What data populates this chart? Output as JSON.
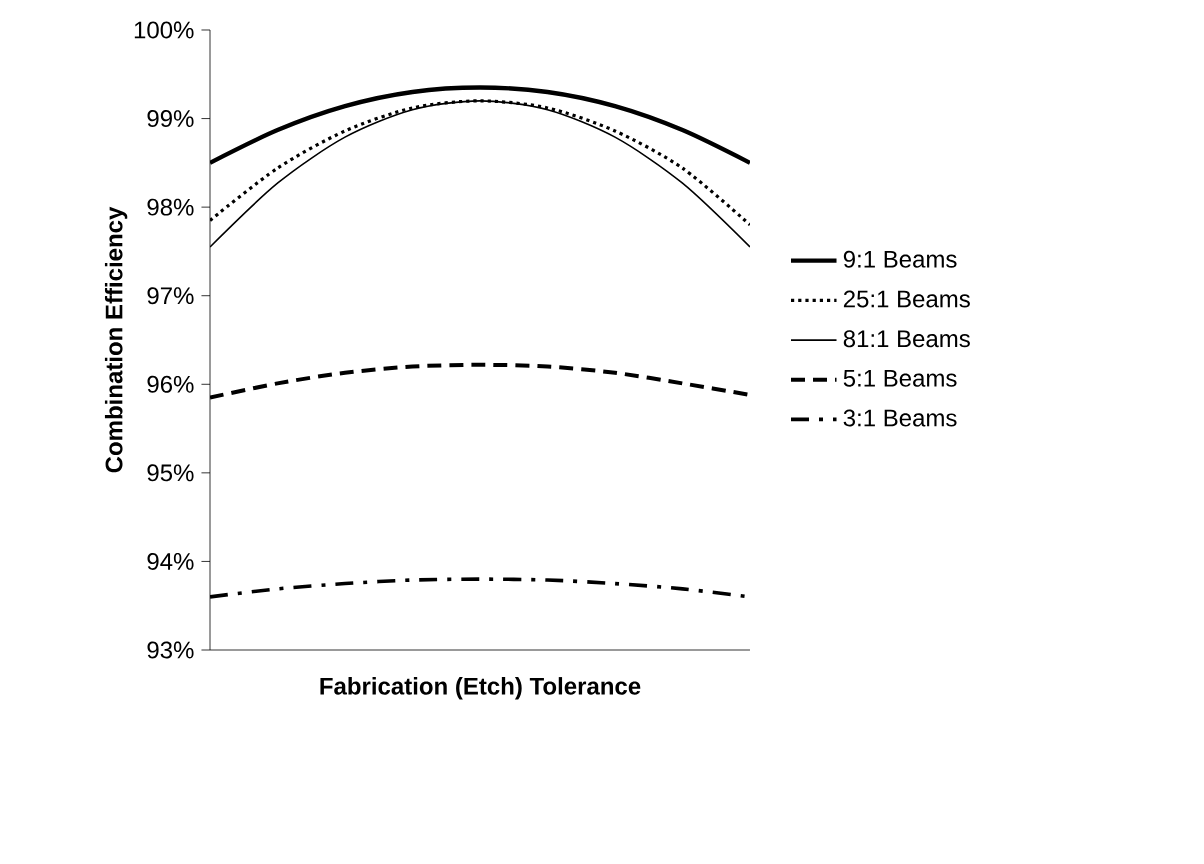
{
  "chart_data": {
    "type": "line",
    "xlabel": "Fabrication (Etch) Tolerance",
    "ylabel": "Combination Efficiency",
    "categories": [
      null,
      null,
      null,
      null,
      null,
      null,
      null,
      null,
      null
    ],
    "series": [
      {
        "name": "9:1 Beams",
        "color": "#000000",
        "line_style": "solid",
        "values": [
          98.5,
          98.87,
          99.14,
          99.3,
          99.35,
          99.3,
          99.14,
          98.87,
          98.5
        ]
      },
      {
        "name": "25:1 Beams",
        "color": "#000000",
        "line_style": "dotted",
        "values": [
          97.85,
          98.44,
          98.86,
          99.12,
          99.2,
          99.12,
          98.86,
          98.44,
          97.8
        ]
      },
      {
        "name": "81:1 Beams",
        "color": "#000000",
        "line_style": "solid",
        "values": [
          97.55,
          98.27,
          98.79,
          99.1,
          99.2,
          99.1,
          98.79,
          98.27,
          97.55
        ]
      },
      {
        "name": "5:1 Beams",
        "color": "#000000",
        "line_style": "dashed",
        "values": [
          95.85,
          96.01,
          96.13,
          96.2,
          96.22,
          96.2,
          96.13,
          96.01,
          95.88
        ]
      },
      {
        "name": "3:1 Beams",
        "color": "#000000",
        "line_style": "dashdot",
        "values": [
          93.6,
          93.69,
          93.75,
          93.79,
          93.8,
          93.79,
          93.75,
          93.69,
          93.6
        ]
      }
    ],
    "ylim": [
      93,
      100
    ],
    "yticks": [
      {
        "value": 93,
        "label": "93%"
      },
      {
        "value": 94,
        "label": "94%"
      },
      {
        "value": 95,
        "label": "95%"
      },
      {
        "value": 96,
        "label": "96%"
      },
      {
        "value": 97,
        "label": "97%"
      },
      {
        "value": 98,
        "label": "98%"
      },
      {
        "value": 99,
        "label": "99%"
      },
      {
        "value": 100,
        "label": "100%"
      }
    ],
    "tick_labels": "y",
    "legend": "right",
    "grid": false,
    "marker": "none"
  }
}
